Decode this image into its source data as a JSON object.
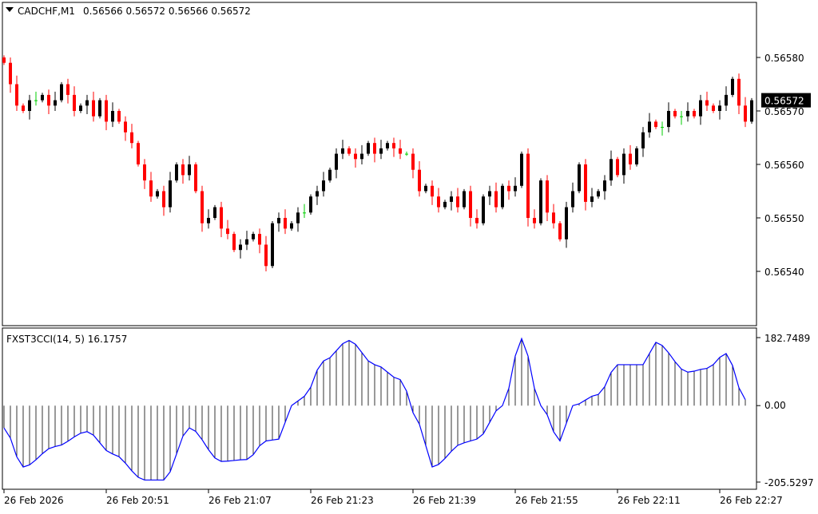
{
  "header": {
    "symbol": "CADCHF,M1",
    "ohlc_text": "0.56566 0.56572 0.56566 0.56572"
  },
  "indicator": {
    "label": "FXST3CCI(14, 5) 16.1757",
    "axis_max": "182.7489",
    "axis_zero": "0.00",
    "axis_min": "-205.5297",
    "line_color": "#0000ff"
  },
  "price_axis": {
    "labels": [
      "0.56580",
      "0.56570",
      "0.56560",
      "0.56550",
      "0.56540"
    ],
    "current": "0.56572"
  },
  "time_axis": [
    "26 Feb 2026",
    "26 Feb 20:51",
    "26 Feb 21:07",
    "26 Feb 21:23",
    "26 Feb 21:39",
    "26 Feb 21:55",
    "26 Feb 22:11",
    "26 Feb 22:27"
  ],
  "colors": {
    "bull": "#000000",
    "bear": "#ff0000",
    "doji": "#00cc00"
  },
  "chart_data": {
    "type": "candlestick",
    "price_base": 0.565,
    "pip": 1e-05,
    "closes_pips": [
      79,
      75,
      71,
      70,
      72,
      72,
      73,
      71,
      72,
      75,
      73,
      70,
      71,
      72,
      69,
      72,
      68,
      70,
      68,
      66,
      64,
      60,
      57,
      54,
      55,
      52,
      57,
      60,
      58,
      60,
      55,
      49,
      50,
      52,
      48,
      47,
      44,
      45,
      46,
      47,
      45,
      41,
      49,
      50,
      48,
      49,
      51,
      51,
      54,
      55,
      57,
      59,
      62,
      63,
      62,
      61,
      62,
      64,
      62,
      63,
      64,
      63,
      62,
      62,
      59,
      55,
      56,
      54,
      52,
      53,
      54,
      52,
      55,
      50,
      49,
      54,
      55,
      52,
      56,
      55,
      56,
      62,
      50,
      49,
      57,
      51,
      49,
      46,
      52,
      55,
      60,
      53,
      54,
      55,
      57,
      61,
      58,
      62,
      60,
      63,
      66,
      68,
      67,
      67,
      70,
      69,
      69,
      70,
      69,
      72,
      71,
      70,
      71,
      73,
      76,
      71,
      68,
      72
    ],
    "price_range": [
      0.56535,
      0.56585
    ],
    "cci_points": [
      [
        0,
        -60
      ],
      [
        3,
        -165
      ],
      [
        8,
        -110
      ],
      [
        13,
        -70
      ],
      [
        17,
        -130
      ],
      [
        22,
        -200
      ],
      [
        25,
        -200
      ],
      [
        29,
        -60
      ],
      [
        34,
        -150
      ],
      [
        38,
        -145
      ],
      [
        41,
        -95
      ],
      [
        43,
        -90
      ],
      [
        45,
        0
      ],
      [
        47,
        25
      ],
      [
        50,
        120
      ],
      [
        54,
        175
      ],
      [
        58,
        110
      ],
      [
        62,
        70
      ],
      [
        65,
        -50
      ],
      [
        67,
        -165
      ],
      [
        72,
        -100
      ],
      [
        74,
        -90
      ],
      [
        78,
        0
      ],
      [
        81,
        180
      ],
      [
        84,
        0
      ],
      [
        87,
        -95
      ],
      [
        89,
        0
      ],
      [
        93,
        30
      ],
      [
        96,
        110
      ],
      [
        100,
        110
      ],
      [
        102,
        170
      ],
      [
        107,
        90
      ],
      [
        110,
        100
      ],
      [
        113,
        140
      ],
      [
        116,
        16
      ]
    ],
    "cci_range": [
      -205.5297,
      182.7489
    ]
  }
}
